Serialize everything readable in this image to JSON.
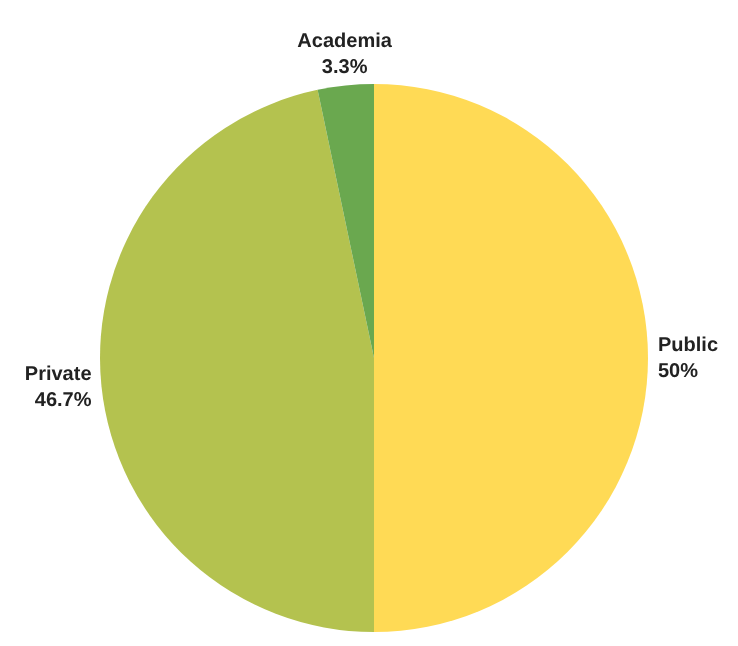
{
  "chart_data": {
    "type": "pie",
    "categories": [
      "Public",
      "Private",
      "Academia"
    ],
    "values": [
      50,
      46.7,
      3.3
    ],
    "colors": [
      "#ffda55",
      "#b4c24f",
      "#6aa84f"
    ],
    "value_labels": [
      "50%",
      "46.7%",
      "3.3%"
    ],
    "legend": false
  }
}
